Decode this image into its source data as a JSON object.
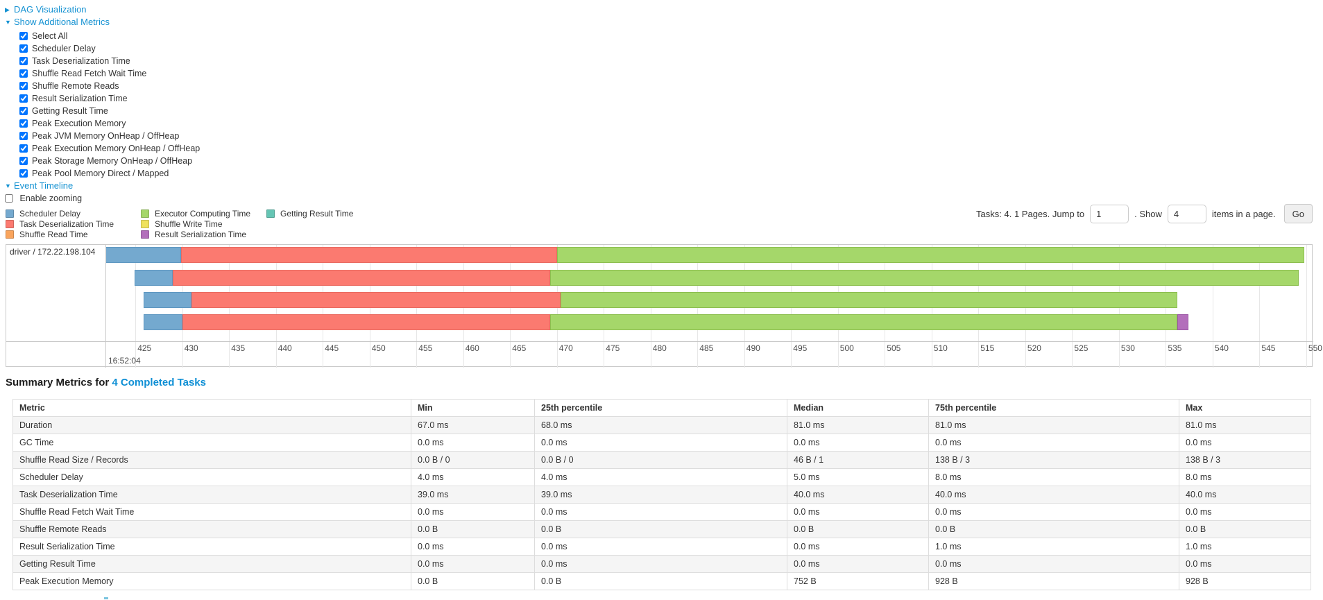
{
  "controls": {
    "dag_label": "DAG Visualization",
    "metrics_label": "Show Additional Metrics",
    "metric_checkboxes": [
      {
        "label": "Select All",
        "checked": true
      },
      {
        "label": "Scheduler Delay",
        "checked": true
      },
      {
        "label": "Task Deserialization Time",
        "checked": true
      },
      {
        "label": "Shuffle Read Fetch Wait Time",
        "checked": true
      },
      {
        "label": "Shuffle Remote Reads",
        "checked": true
      },
      {
        "label": "Result Serialization Time",
        "checked": true
      },
      {
        "label": "Getting Result Time",
        "checked": true
      },
      {
        "label": "Peak Execution Memory",
        "checked": true
      },
      {
        "label": "Peak JVM Memory OnHeap / OffHeap",
        "checked": true
      },
      {
        "label": "Peak Execution Memory OnHeap / OffHeap",
        "checked": true
      },
      {
        "label": "Peak Storage Memory OnHeap / OffHeap",
        "checked": true
      },
      {
        "label": "Peak Pool Memory Direct / Mapped",
        "checked": true
      }
    ],
    "event_timeline_label": "Event Timeline",
    "enable_zooming": {
      "label": "Enable zooming",
      "checked": false
    }
  },
  "legend": {
    "columns": [
      [
        {
          "key": "scheduler_delay",
          "label": "Scheduler Delay"
        },
        {
          "key": "task_deserialization",
          "label": "Task Deserialization Time"
        },
        {
          "key": "shuffle_read",
          "label": "Shuffle Read Time"
        }
      ],
      [
        {
          "key": "executor_computing",
          "label": "Executor Computing Time"
        },
        {
          "key": "shuffle_write",
          "label": "Shuffle Write Time"
        },
        {
          "key": "result_serialization",
          "label": "Result Serialization Time"
        }
      ],
      [
        {
          "key": "getting_result",
          "label": "Getting Result Time"
        }
      ]
    ]
  },
  "pagination": {
    "prefix": "Tasks: 4. 1 Pages. Jump to",
    "jump_value": "1",
    "mid": ". Show",
    "show_value": "4",
    "suffix": "items in a page.",
    "go_label": "Go"
  },
  "chart_data": {
    "type": "timeline",
    "title": "Event Timeline",
    "group_label": "driver / 172.22.198.104",
    "time_major_label": "16:52:04",
    "axis": {
      "unit": "ms within second 16:52:04",
      "tick_start": 425,
      "tick_end": 550,
      "tick_step": 5,
      "view_min": 421.8,
      "view_max": 550.6
    },
    "palette": {
      "scheduler_delay": {
        "fill": "#74A9CF",
        "border": "#5E97C1"
      },
      "task_deserialization": {
        "fill": "#FB7A70",
        "border": "#E96A60"
      },
      "shuffle_read": {
        "fill": "#F9A45C",
        "border": "#E08F48"
      },
      "executor_computing": {
        "fill": "#A5D76A",
        "border": "#8CBE4F"
      },
      "shuffle_write": {
        "fill": "#EFE25E",
        "border": "#D9CB47"
      },
      "result_serialization": {
        "fill": "#B36FBB",
        "border": "#9C58A5"
      },
      "getting_result": {
        "fill": "#65C5B4",
        "border": "#50AE9D"
      }
    },
    "tasks": [
      {
        "row": 0,
        "segments": [
          [
            "scheduler_delay",
            421.8,
            429.9
          ],
          [
            "task_deserialization",
            429.9,
            470.0
          ],
          [
            "executor_computing",
            470.0,
            549.8
          ]
        ]
      },
      {
        "row": 1,
        "segments": [
          [
            "scheduler_delay",
            424.9,
            429.0
          ],
          [
            "task_deserialization",
            429.0,
            469.3
          ],
          [
            "executor_computing",
            469.3,
            549.2
          ]
        ]
      },
      {
        "row": 2,
        "segments": [
          [
            "scheduler_delay",
            425.9,
            431.0
          ],
          [
            "task_deserialization",
            431.0,
            470.4
          ],
          [
            "executor_computing",
            470.4,
            536.2
          ]
        ]
      },
      {
        "row": 3,
        "segments": [
          [
            "scheduler_delay",
            425.9,
            430.0
          ],
          [
            "task_deserialization",
            430.0,
            469.3
          ],
          [
            "executor_computing",
            469.3,
            536.2
          ],
          [
            "result_serialization",
            536.2,
            537.4
          ]
        ]
      }
    ]
  },
  "summary": {
    "title_prefix": "Summary Metrics for",
    "title_link": "4 Completed Tasks",
    "table": {
      "headers": [
        "Metric",
        "Min",
        "25th percentile",
        "Median",
        "75th percentile",
        "Max"
      ],
      "rows": [
        [
          "Duration",
          "67.0 ms",
          "68.0 ms",
          "81.0 ms",
          "81.0 ms",
          "81.0 ms"
        ],
        [
          "GC Time",
          "0.0 ms",
          "0.0 ms",
          "0.0 ms",
          "0.0 ms",
          "0.0 ms"
        ],
        [
          "Shuffle Read Size / Records",
          "0.0 B / 0",
          "0.0 B / 0",
          "46 B / 1",
          "138 B / 3",
          "138 B / 3"
        ],
        [
          "Scheduler Delay",
          "4.0 ms",
          "4.0 ms",
          "5.0 ms",
          "8.0 ms",
          "8.0 ms"
        ],
        [
          "Task Deserialization Time",
          "39.0 ms",
          "39.0 ms",
          "40.0 ms",
          "40.0 ms",
          "40.0 ms"
        ],
        [
          "Shuffle Read Fetch Wait Time",
          "0.0 ms",
          "0.0 ms",
          "0.0 ms",
          "0.0 ms",
          "0.0 ms"
        ],
        [
          "Shuffle Remote Reads",
          "0.0 B",
          "0.0 B",
          "0.0 B",
          "0.0 B",
          "0.0 B"
        ],
        [
          "Result Serialization Time",
          "0.0 ms",
          "0.0 ms",
          "0.0 ms",
          "1.0 ms",
          "1.0 ms"
        ],
        [
          "Getting Result Time",
          "0.0 ms",
          "0.0 ms",
          "0.0 ms",
          "0.0 ms",
          "0.0 ms"
        ],
        [
          "Peak Execution Memory",
          "0.0 B",
          "0.0 B",
          "752 B",
          "928 B",
          "928 B"
        ]
      ]
    }
  }
}
